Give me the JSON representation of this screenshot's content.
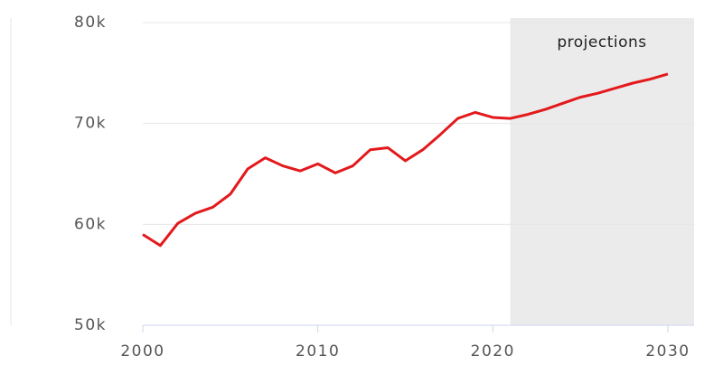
{
  "chart_data": {
    "type": "line",
    "annotation": "projections",
    "projection_start": 2021,
    "x": [
      2000,
      2001,
      2002,
      2003,
      2004,
      2005,
      2006,
      2007,
      2008,
      2009,
      2010,
      2011,
      2012,
      2013,
      2014,
      2015,
      2016,
      2017,
      2018,
      2019,
      2020,
      2021,
      2022,
      2023,
      2024,
      2025,
      2026,
      2027,
      2028,
      2029,
      2030
    ],
    "series": [
      {
        "color": "#e3191c",
        "values": [
          59000,
          57900,
          60100,
          61100,
          61700,
          63000,
          65500,
          66600,
          65800,
          65300,
          66000,
          65100,
          65800,
          67400,
          67600,
          66300,
          67400,
          68900,
          70500,
          71100,
          70600,
          70500,
          70900,
          71400,
          72000,
          72600,
          73000,
          73500,
          74000,
          74400,
          74900
        ]
      }
    ],
    "xlim": [
      2000,
      2031.5
    ],
    "xticks": [
      2000,
      2010,
      2020,
      2030
    ],
    "ylim": [
      50000,
      80000
    ],
    "yticks": [
      {
        "value": 50000,
        "label": "50k"
      },
      {
        "value": 60000,
        "label": "60k"
      },
      {
        "value": 70000,
        "label": "70k"
      },
      {
        "value": 80000,
        "label": "80k"
      }
    ],
    "grid": true
  }
}
